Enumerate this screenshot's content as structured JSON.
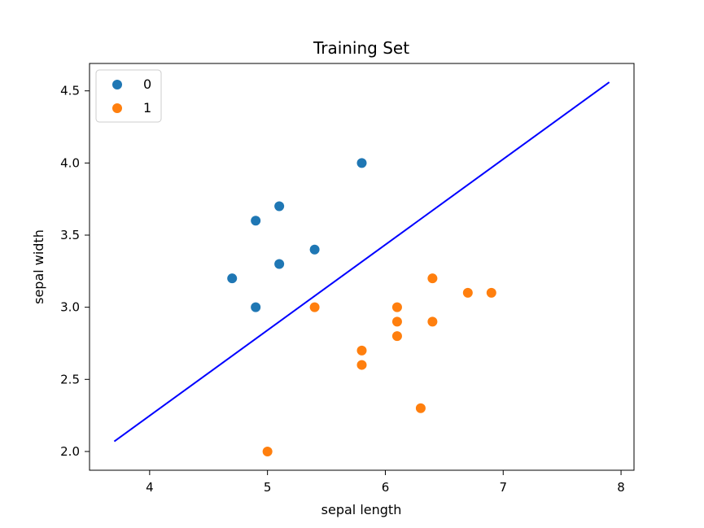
{
  "chart_data": {
    "type": "scatter",
    "title": "Training Set",
    "xlabel": "sepal length",
    "ylabel": "sepal width",
    "xlim": [
      3.49,
      8.11
    ],
    "ylim": [
      1.87,
      4.69
    ],
    "xticks": [
      4,
      5,
      6,
      7,
      8
    ],
    "yticks": [
      2.0,
      2.5,
      3.0,
      3.5,
      4.0,
      4.5
    ],
    "grid": false,
    "legend": "top-left",
    "series": [
      {
        "name": "0",
        "color": "#1f77b4",
        "points": [
          [
            4.7,
            3.2
          ],
          [
            4.9,
            3.0
          ],
          [
            4.9,
            3.6
          ],
          [
            5.1,
            3.3
          ],
          [
            5.1,
            3.7
          ],
          [
            5.4,
            3.4
          ],
          [
            5.8,
            4.0
          ]
        ]
      },
      {
        "name": "1",
        "color": "#ff7f0e",
        "points": [
          [
            5.0,
            2.0
          ],
          [
            5.4,
            3.0
          ],
          [
            5.8,
            2.7
          ],
          [
            5.8,
            2.6
          ],
          [
            6.1,
            3.0
          ],
          [
            6.1,
            2.9
          ],
          [
            6.1,
            2.8
          ],
          [
            6.3,
            2.3
          ],
          [
            6.4,
            3.2
          ],
          [
            6.4,
            2.9
          ],
          [
            6.7,
            3.1
          ],
          [
            6.9,
            3.1
          ]
        ]
      }
    ],
    "decision_line": {
      "color": "#0000ff",
      "points": [
        [
          3.7,
          2.07
        ],
        [
          7.9,
          4.56
        ]
      ]
    }
  }
}
